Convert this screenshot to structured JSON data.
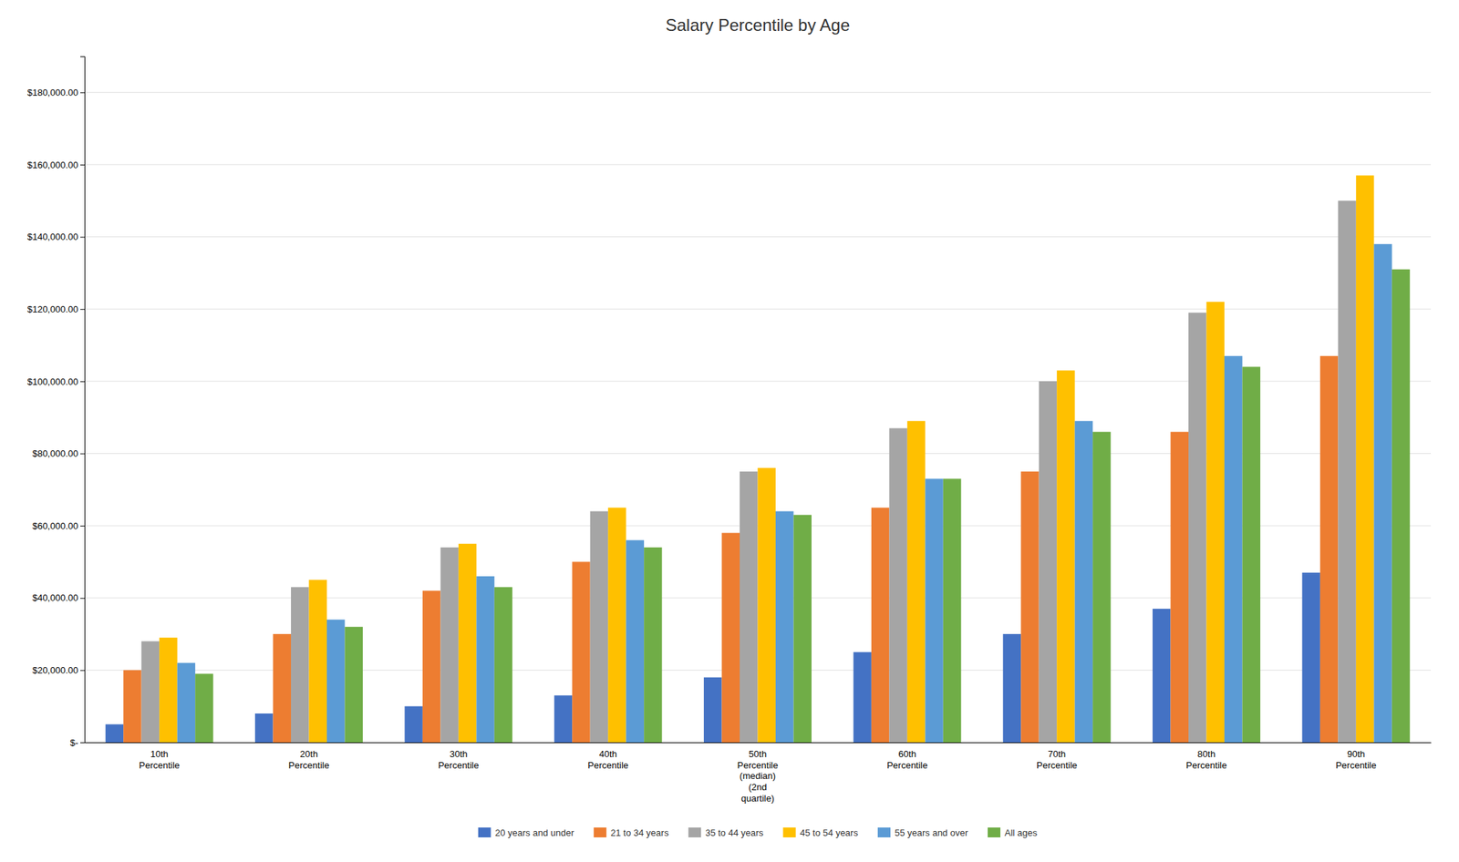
{
  "chart_data": {
    "type": "bar",
    "title": "Salary Percentile by Age",
    "categories": [
      "10th\nPercentile",
      "20th\nPercentile",
      "30th\nPercentile",
      "40th\nPercentile",
      "50th\nPercentile\n(median)\n(2nd\nquartile)",
      "60th\nPercentile",
      "70th\nPercentile",
      "80th\nPercentile",
      "90th\nPercentile"
    ],
    "series": [
      {
        "name": "20 years and under",
        "color": "#4472C4",
        "values": [
          5000,
          8000,
          10000,
          13000,
          18000,
          25000,
          30000,
          37000,
          47000
        ]
      },
      {
        "name": "21 to 34 years",
        "color": "#ED7D31",
        "values": [
          20000,
          30000,
          42000,
          50000,
          58000,
          65000,
          75000,
          86000,
          107000
        ]
      },
      {
        "name": "35 to 44 years",
        "color": "#A5A5A5",
        "values": [
          28000,
          43000,
          54000,
          64000,
          75000,
          87000,
          100000,
          119000,
          150000
        ]
      },
      {
        "name": "45 to 54 years",
        "color": "#FFC000",
        "values": [
          29000,
          45000,
          55000,
          65000,
          76000,
          89000,
          103000,
          122000,
          157000
        ]
      },
      {
        "name": "55 years and over",
        "color": "#5B9BD5",
        "values": [
          22000,
          34000,
          46000,
          56000,
          64000,
          73000,
          89000,
          107000,
          138000
        ]
      },
      {
        "name": "All ages",
        "color": "#70AD47",
        "values": [
          19000,
          32000,
          43000,
          54000,
          63000,
          73000,
          86000,
          104000,
          131000
        ]
      }
    ],
    "ylim": [
      0,
      190000
    ],
    "yticks": [
      {
        "value": 0,
        "label": "$-"
      },
      {
        "value": 20000,
        "label": "$20,000.00"
      },
      {
        "value": 40000,
        "label": "$40,000.00"
      },
      {
        "value": 60000,
        "label": "$60,000.00"
      },
      {
        "value": 80000,
        "label": "$80,000.00"
      },
      {
        "value": 100000,
        "label": "$100,000.00"
      },
      {
        "value": 120000,
        "label": "$120,000.00"
      },
      {
        "value": 140000,
        "label": "$140,000.00"
      },
      {
        "value": 160000,
        "label": "$160,000.00"
      },
      {
        "value": 180000,
        "label": "$180,000.00"
      }
    ],
    "grid": true,
    "legend": "bottom"
  }
}
